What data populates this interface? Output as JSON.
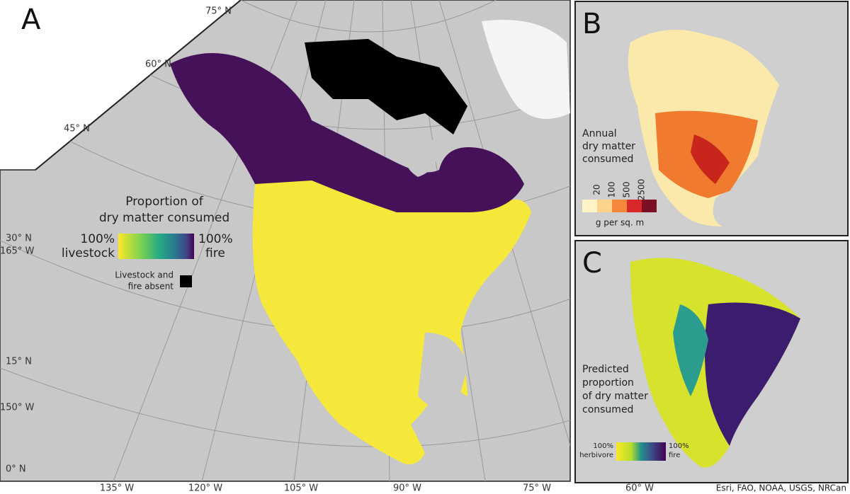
{
  "panel_a": {
    "label": "A",
    "latitude_labels": [
      "75° N",
      "60° N",
      "45° N",
      "30° N",
      "165° W",
      "15° N",
      "150° W",
      "0° N"
    ],
    "longitude_labels": [
      "135° W",
      "120° W",
      "105° W",
      "90° W",
      "75° W",
      "60° W"
    ],
    "legend": {
      "title": [
        "Proportion of",
        "dry matter consumed"
      ],
      "low_label": [
        "100%",
        "livestock"
      ],
      "high_label": [
        "100%",
        "fire"
      ],
      "absent_label": [
        "Livestock and",
        "fire absent"
      ]
    }
  },
  "panel_b": {
    "label": "B",
    "legend": {
      "title": [
        "Annual",
        "dry matter",
        "consumed"
      ],
      "ticks": [
        20,
        100,
        500,
        2500
      ],
      "unit": "g per sq. m"
    }
  },
  "panel_c": {
    "label": "C",
    "legend": {
      "title": [
        "Predicted",
        "proportion",
        "of dry matter",
        "consumed"
      ],
      "low_label": [
        "100%",
        "herbivore"
      ],
      "high_label": [
        "100%",
        "fire"
      ]
    }
  },
  "attribution": "Esri, FAO, NOAA, USGS, NRCan"
}
